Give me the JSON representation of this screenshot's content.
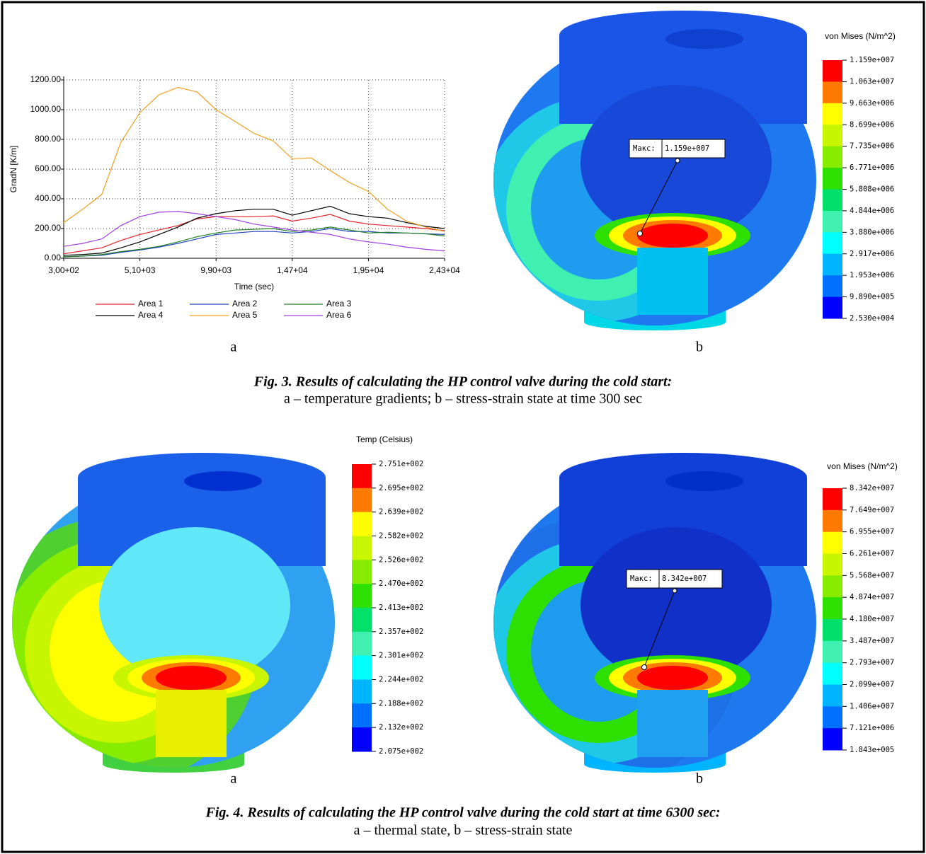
{
  "chart_data": {
    "type": "line",
    "x_label": "Time (sec)",
    "y_label": "GradN [K/m]",
    "x": [
      300,
      1500,
      2700,
      3900,
      5100,
      6300,
      7500,
      8700,
      9900,
      11100,
      12300,
      13500,
      14700,
      15900,
      17100,
      18300,
      19500,
      20700,
      21900,
      23100,
      24300
    ],
    "xlim": [
      300,
      24300
    ],
    "xticks": [
      {
        "value": 300,
        "label": "3,00+02"
      },
      {
        "value": 5100,
        "label": "5,10+03"
      },
      {
        "value": 9900,
        "label": "9,90+03"
      },
      {
        "value": 14700,
        "label": "1,47+04"
      },
      {
        "value": 19500,
        "label": "1,95+04"
      },
      {
        "value": 24300,
        "label": "2,43+04"
      }
    ],
    "ylim": [
      0,
      1200
    ],
    "yticks": [
      {
        "value": 0,
        "label": "0.00"
      },
      {
        "value": 200,
        "label": "200.00"
      },
      {
        "value": 400,
        "label": "400.00"
      },
      {
        "value": 600,
        "label": "600.00"
      },
      {
        "value": 800,
        "label": "800.00"
      },
      {
        "value": 1000,
        "label": "1000.00"
      },
      {
        "value": 1200,
        "label": "1200.00"
      }
    ],
    "grid": true,
    "series": [
      {
        "name": "Area 1",
        "color": "#e0202a",
        "values": [
          30,
          50,
          70,
          120,
          160,
          190,
          220,
          265,
          280,
          280,
          280,
          285,
          250,
          270,
          295,
          250,
          230,
          220,
          210,
          200,
          185
        ]
      },
      {
        "name": "Area 2",
        "color": "#2040c0",
        "values": [
          10,
          15,
          20,
          40,
          55,
          75,
          100,
          130,
          160,
          170,
          180,
          180,
          170,
          180,
          200,
          180,
          180,
          170,
          170,
          165,
          160
        ]
      },
      {
        "name": "Area 3",
        "color": "#208020",
        "values": [
          10,
          15,
          25,
          45,
          60,
          80,
          110,
          145,
          170,
          190,
          195,
          200,
          180,
          190,
          210,
          190,
          170,
          175,
          170,
          165,
          150
        ]
      },
      {
        "name": "Area 4",
        "color": "#000000",
        "values": [
          20,
          25,
          35,
          70,
          110,
          160,
          210,
          270,
          300,
          320,
          330,
          330,
          290,
          320,
          350,
          300,
          280,
          270,
          240,
          215,
          200
        ]
      },
      {
        "name": "Area 5",
        "color": "#f0a020",
        "values": [
          240,
          330,
          430,
          780,
          980,
          1100,
          1150,
          1120,
          1000,
          920,
          840,
          790,
          670,
          675,
          590,
          510,
          450,
          330,
          250,
          210,
          180
        ]
      },
      {
        "name": "Area 6",
        "color": "#a040e0",
        "values": [
          80,
          100,
          130,
          220,
          280,
          310,
          315,
          300,
          280,
          260,
          230,
          210,
          190,
          175,
          160,
          130,
          110,
          95,
          75,
          60,
          50
        ]
      }
    ]
  },
  "fig3": {
    "panel_a": "a",
    "panel_b": "b",
    "legend_title": "von Mises (N/m^2)",
    "legend_labels": [
      "1.159e+007",
      "1.063e+007",
      "9.663e+006",
      "8.699e+006",
      "7.735e+006",
      "6.771e+006",
      "5.808e+006",
      "4.844e+006",
      "3.880e+006",
      "2.917e+006",
      "1.953e+006",
      "9.890e+005",
      "2.530e+004"
    ],
    "max_label": "Макс:",
    "max_value": "1.159e+007",
    "caption_title": "Fig. 3. Results of calculating the HP control valve during the cold start:",
    "caption_text": "a – temperature gradients; b – stress-strain state at time 300 sec"
  },
  "fig4": {
    "panel_a": "a",
    "panel_b": "b",
    "temp_legend_title": "Temp (Celsius)",
    "temp_legend_labels": [
      "2.751e+002",
      "2.695e+002",
      "2.639e+002",
      "2.582e+002",
      "2.526e+002",
      "2.470e+002",
      "2.413e+002",
      "2.357e+002",
      "2.301e+002",
      "2.244e+002",
      "2.188e+002",
      "2.132e+002",
      "2.075e+002"
    ],
    "stress_legend_title": "von Mises (N/m^2)",
    "stress_legend_labels": [
      "8.342e+007",
      "7.649e+007",
      "6.955e+007",
      "6.261e+007",
      "5.568e+007",
      "4.874e+007",
      "4.180e+007",
      "3.487e+007",
      "2.793e+007",
      "2.099e+007",
      "1.406e+007",
      "7.121e+006",
      "1.843e+005"
    ],
    "max_label": "Макс:",
    "max_value": "8.342e+007",
    "caption_title": "Fig. 4. Results of calculating the HP control valve during the cold start at time 6300 sec:",
    "caption_text": "a – thermal state, b – stress-strain state"
  }
}
